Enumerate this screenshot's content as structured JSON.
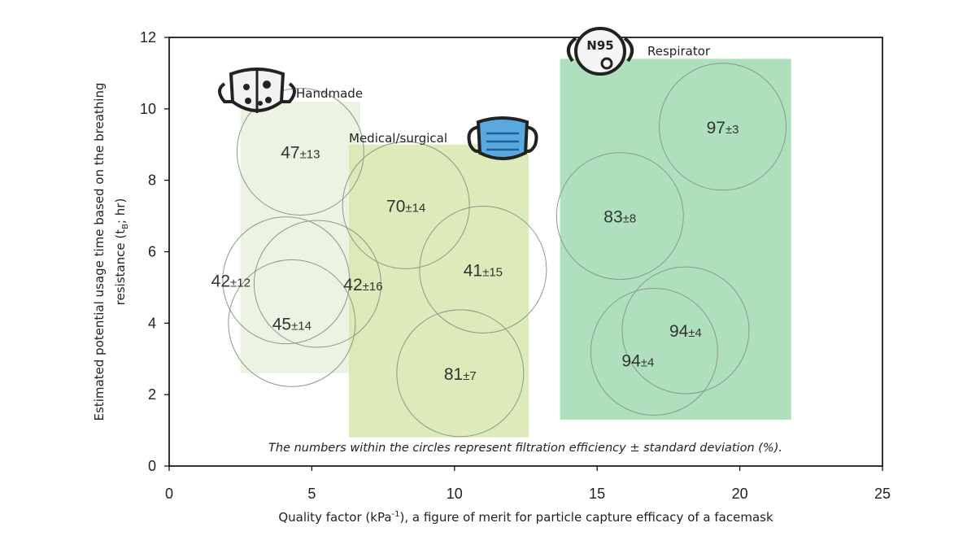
{
  "chart_data": {
    "type": "scatter",
    "subtype": "bubble",
    "xlabel": "Quality factor (kPa⁻¹), a figure of merit for particle capture efficacy of a facemask",
    "ylabel_line1": "Estimated potential usage time based on the breathing",
    "ylabel_line2": "resistance (t",
    "ylabel_sub": "B",
    "ylabel_tail": "; hr)",
    "xlim": [
      0,
      25
    ],
    "ylim": [
      0,
      12
    ],
    "xticks": [
      "0",
      "5",
      "10",
      "15",
      "20",
      "25"
    ],
    "yticks": [
      "0",
      "2",
      "4",
      "6",
      "8",
      "10",
      "12"
    ],
    "caption": "The numbers within the circles represent filtration efficiency ± standard deviation (%).",
    "groups": [
      {
        "name": "Handmade",
        "color": "#eaf2df",
        "x_range": [
          2.5,
          6.7
        ],
        "y_range": [
          2.6,
          10.2
        ],
        "icon": "handmade-mask-icon",
        "points": [
          {
            "x": 4.6,
            "y": 8.8,
            "efficiency": "47",
            "sd": "±13"
          },
          {
            "x": 4.1,
            "y": 5.2,
            "efficiency": "42",
            "sd": "±12"
          },
          {
            "x": 5.2,
            "y": 5.1,
            "efficiency": "42",
            "sd": "±16"
          },
          {
            "x": 4.3,
            "y": 4.0,
            "efficiency": "45",
            "sd": "±14"
          }
        ]
      },
      {
        "name": "Medical/surgical",
        "color": "#d9e9b3",
        "x_range": [
          6.3,
          12.6
        ],
        "y_range": [
          0.8,
          9.0
        ],
        "icon": "surgical-mask-icon",
        "points": [
          {
            "x": 8.3,
            "y": 7.3,
            "efficiency": "70",
            "sd": "±14"
          },
          {
            "x": 11.0,
            "y": 5.5,
            "efficiency": "41",
            "sd": "±15"
          },
          {
            "x": 10.2,
            "y": 2.6,
            "efficiency": "81",
            "sd": "±7"
          }
        ]
      },
      {
        "name": "Respirator",
        "color": "#a8ddb8",
        "x_range": [
          13.7,
          21.8
        ],
        "y_range": [
          1.3,
          11.4
        ],
        "icon": "n95-respirator-icon",
        "icon_text": "N95",
        "points": [
          {
            "x": 19.4,
            "y": 9.5,
            "efficiency": "97",
            "sd": "±3"
          },
          {
            "x": 15.8,
            "y": 7.0,
            "efficiency": "83",
            "sd": "±8"
          },
          {
            "x": 18.1,
            "y": 3.8,
            "efficiency": "94",
            "sd": "±4"
          },
          {
            "x": 17.0,
            "y": 3.2,
            "efficiency": "94",
            "sd": "±4"
          }
        ]
      }
    ]
  }
}
